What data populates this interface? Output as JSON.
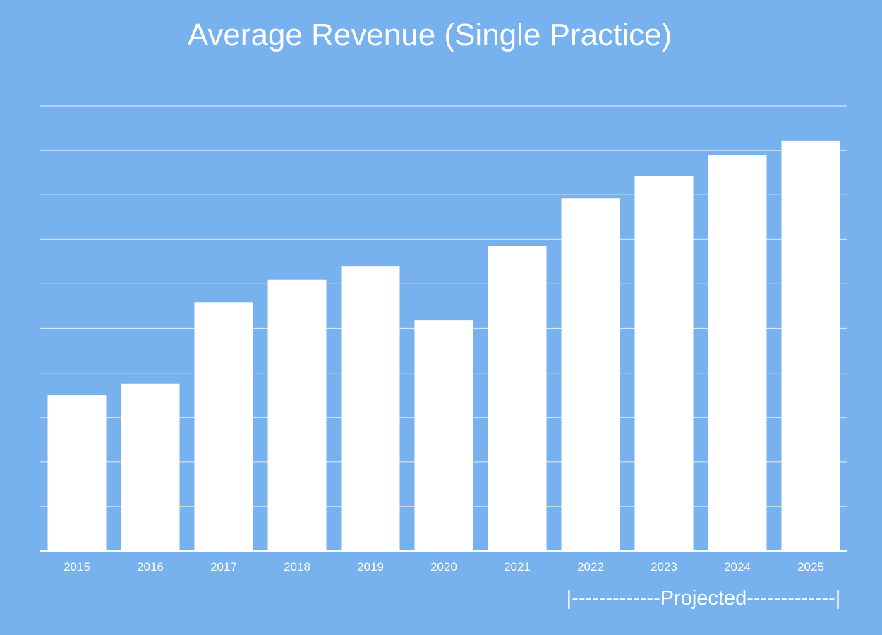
{
  "chart_data": {
    "type": "bar",
    "title": "Average Revenue (Single Practice)",
    "xlabel": "",
    "ylabel": "",
    "categories": [
      "2015",
      "2016",
      "2017",
      "2018",
      "2019",
      "2020",
      "2021",
      "2022",
      "2023",
      "2024",
      "2025"
    ],
    "values": [
      3.5,
      3.76,
      5.59,
      6.09,
      6.4,
      5.18,
      6.86,
      7.92,
      8.43,
      8.89,
      9.21
    ],
    "ylim": [
      0,
      10
    ],
    "y_tick_labels_shown": false,
    "grid": true,
    "annotation": "|-------------Projected-------------|",
    "colors": {
      "background": "#77b1ee",
      "bar": "#ffffff",
      "grid": "#d6e6f8",
      "text": "#ffffff"
    }
  }
}
